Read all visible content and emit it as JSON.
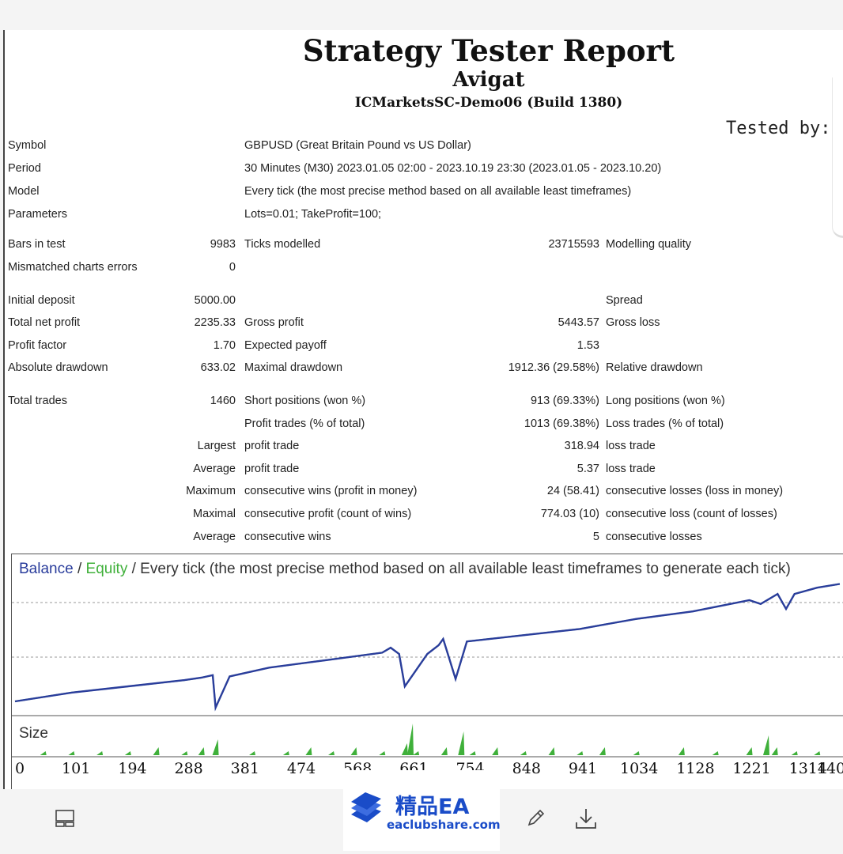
{
  "report": {
    "title": "Strategy Tester Report",
    "ea_name": "Avigat",
    "server": "ICMarketsSC-Demo06 (Build 1380)",
    "tested_by": "Tested by:"
  },
  "settings": {
    "symbol_label": "Symbol",
    "symbol_value": "GBPUSD (Great Britain Pound vs US Dollar)",
    "period_label": "Period",
    "period_value": "30 Minutes (M30) 2023.01.05 02:00 - 2023.10.19 23:30 (2023.01.05 - 2023.10.20)",
    "model_label": "Model",
    "model_value": "Every tick (the most precise method based on all available least timeframes)",
    "parameters_label": "Parameters",
    "parameters_value": "Lots=0.01; TakeProfit=100;"
  },
  "stats": {
    "bars_label": "Bars in test",
    "bars_value": "9983",
    "ticks_label": "Ticks modelled",
    "ticks_value": "23715593",
    "quality_label": "Modelling quality",
    "mismatch_label": "Mismatched charts errors",
    "mismatch_value": "0",
    "deposit_label": "Initial deposit",
    "deposit_value": "5000.00",
    "spread_label": "Spread",
    "net_profit_label": "Total net profit",
    "net_profit_value": "2235.33",
    "gross_profit_label": "Gross profit",
    "gross_profit_value": "5443.57",
    "gross_loss_label": "Gross loss",
    "profit_factor_label": "Profit factor",
    "profit_factor_value": "1.70",
    "expected_payoff_label": "Expected payoff",
    "expected_payoff_value": "1.53",
    "abs_dd_label": "Absolute drawdown",
    "abs_dd_value": "633.02",
    "max_dd_label": "Maximal drawdown",
    "max_dd_value": "1912.36 (29.58%)",
    "rel_dd_label": "Relative drawdown",
    "total_trades_label": "Total trades",
    "total_trades_value": "1460",
    "short_label": "Short positions (won %)",
    "short_value": "913 (69.33%)",
    "long_label": "Long positions (won %)",
    "profit_trades_label": "Profit trades (% of total)",
    "profit_trades_value": "1013 (69.38%)",
    "loss_trades_label": "Loss trades (% of total)",
    "largest_label": "Largest",
    "largest_profit_label": "profit trade",
    "largest_profit_value": "318.94",
    "largest_loss_label": "loss trade",
    "average_label": "Average",
    "average_profit_label": "profit trade",
    "average_profit_value": "5.37",
    "average_loss_label": "loss trade",
    "maximum_label": "Maximum",
    "max_cons_wins_label": "consecutive wins (profit in money)",
    "max_cons_wins_value": "24 (58.41)",
    "max_cons_losses_label": "consecutive losses (loss in money)",
    "maximal_label": "Maximal",
    "maximal_cons_profit_label": "consecutive profit (count of wins)",
    "maximal_cons_profit_value": "774.03 (10)",
    "maximal_cons_loss_label": "consecutive loss (count of losses)",
    "average2_label": "Average",
    "avg_cons_wins_label": "consecutive wins",
    "avg_cons_wins_value": "5",
    "avg_cons_losses_label": "consecutive losses"
  },
  "chart": {
    "balance_label": "Balance",
    "sep1": " / ",
    "equity_label": "Equity",
    "sep2": " / ",
    "mode_label": "Every tick (the most precise method based on all available least timeframes to generate each tick)",
    "size_label": "Size",
    "colors": {
      "balance": "#2a3d9c",
      "equity": "#3fb03a",
      "grid": "#9a9a9a"
    }
  },
  "chart_data": {
    "type": "line",
    "title": "",
    "xlabel": "",
    "ylabel": "",
    "x_ticks": [
      "0",
      "101",
      "194",
      "288",
      "381",
      "474",
      "568",
      "661",
      "754",
      "848",
      "941",
      "1034",
      "1128",
      "1221",
      "1314",
      "140"
    ],
    "xlim": [
      0,
      1470
    ],
    "series": [
      {
        "name": "Balance",
        "x": [
          0,
          100,
          200,
          300,
          330,
          360,
          450,
          550,
          650,
          670,
          700,
          755,
          800,
          900,
          1000,
          1050,
          1100,
          1200,
          1300,
          1360,
          1420,
          1460
        ],
        "y": [
          0.0,
          0.07,
          0.12,
          0.17,
          0.19,
          0.21,
          0.27,
          0.33,
          0.39,
          0.4,
          0.41,
          0.45,
          0.48,
          0.53,
          0.58,
          0.62,
          0.66,
          0.72,
          0.81,
          0.86,
          0.91,
          0.94
        ]
      },
      {
        "name": "Equity",
        "x": [
          0,
          100,
          200,
          300,
          330,
          350,
          355,
          380,
          450,
          550,
          650,
          665,
          680,
          690,
          730,
          750,
          758,
          780,
          800,
          900,
          1000,
          1050,
          1100,
          1200,
          1300,
          1320,
          1350,
          1365,
          1380,
          1420,
          1460
        ],
        "y": [
          0.0,
          0.07,
          0.12,
          0.17,
          0.19,
          0.21,
          -0.05,
          0.2,
          0.27,
          0.33,
          0.39,
          0.43,
          0.38,
          0.12,
          0.38,
          0.45,
          0.5,
          0.18,
          0.48,
          0.53,
          0.58,
          0.62,
          0.66,
          0.72,
          0.81,
          0.78,
          0.86,
          0.74,
          0.86,
          0.91,
          0.94
        ]
      }
    ],
    "size_bars": {
      "x": [
        50,
        100,
        150,
        200,
        250,
        300,
        330,
        355,
        420,
        480,
        520,
        560,
        600,
        650,
        690,
        700,
        710,
        760,
        790,
        810,
        850,
        900,
        950,
        1000,
        1040,
        1100,
        1180,
        1240,
        1300,
        1330,
        1345,
        1380,
        1420
      ],
      "y": [
        1,
        1,
        1,
        1,
        2,
        1,
        2,
        4,
        1,
        1,
        2,
        1,
        2,
        1,
        3,
        8,
        1,
        2,
        6,
        1,
        2,
        1,
        2,
        1,
        2,
        1,
        2,
        1,
        2,
        5,
        2,
        1,
        1
      ]
    }
  },
  "footer": {
    "logo_cn": "精品EA",
    "logo_url": "eaclubshare.com"
  }
}
